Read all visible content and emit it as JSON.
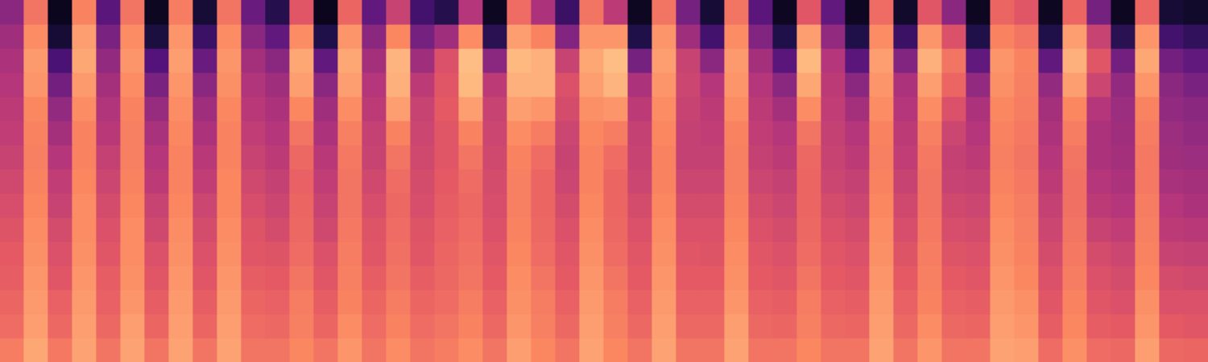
{
  "chart_data": {
    "type": "heatmap",
    "color": "magma",
    "color_range": [
      0,
      100
    ],
    "grid": false,
    "tick_labels": false,
    "cells": [
      [
        40,
        45,
        48,
        50,
        52,
        53,
        55,
        57,
        59,
        61,
        63,
        64,
        66,
        68,
        72
      ],
      [
        70,
        76,
        79,
        78,
        75,
        74,
        73,
        74,
        75,
        76,
        77,
        78,
        79,
        80,
        82
      ],
      [
        5,
        10,
        24,
        34,
        42,
        46,
        50,
        53,
        55,
        58,
        60,
        62,
        65,
        67,
        71
      ],
      [
        74,
        80,
        82,
        79,
        76,
        74,
        74,
        75,
        76,
        76,
        77,
        78,
        79,
        80,
        81
      ],
      [
        28,
        36,
        42,
        46,
        49,
        51,
        54,
        56,
        58,
        60,
        62,
        64,
        65,
        67,
        70
      ],
      [
        70,
        76,
        78,
        76,
        74,
        73,
        73,
        74,
        75,
        76,
        76,
        77,
        78,
        80,
        81
      ],
      [
        6,
        12,
        26,
        36,
        43,
        47,
        50,
        52,
        55,
        57,
        60,
        62,
        64,
        66,
        70
      ],
      [
        72,
        78,
        80,
        78,
        76,
        75,
        74,
        74,
        75,
        76,
        77,
        78,
        79,
        80,
        81
      ],
      [
        10,
        20,
        32,
        40,
        45,
        48,
        51,
        53,
        56,
        58,
        60,
        62,
        64,
        66,
        70
      ],
      [
        70,
        76,
        78,
        77,
        75,
        74,
        74,
        75,
        75,
        76,
        77,
        78,
        79,
        80,
        81
      ],
      [
        32,
        40,
        46,
        49,
        51,
        53,
        55,
        57,
        59,
        61,
        62,
        64,
        66,
        68,
        70
      ],
      [
        15,
        30,
        40,
        45,
        48,
        50,
        52,
        54,
        56,
        58,
        61,
        63,
        65,
        67,
        70
      ],
      [
        62,
        76,
        82,
        80,
        75,
        70,
        67,
        65,
        66,
        67,
        68,
        70,
        72,
        73,
        75
      ],
      [
        5,
        14,
        30,
        40,
        45,
        48,
        51,
        53,
        55,
        57,
        60,
        62,
        64,
        66,
        70
      ],
      [
        66,
        78,
        82,
        80,
        76,
        73,
        71,
        70,
        70,
        71,
        72,
        73,
        74,
        76,
        78
      ],
      [
        30,
        40,
        46,
        50,
        52,
        54,
        55,
        57,
        59,
        61,
        62,
        64,
        66,
        68,
        70
      ],
      [
        55,
        75,
        85,
        84,
        80,
        74,
        70,
        68,
        67,
        68,
        69,
        70,
        72,
        74,
        76
      ],
      [
        22,
        35,
        45,
        52,
        55,
        56,
        57,
        58,
        59,
        61,
        62,
        64,
        66,
        68,
        70
      ],
      [
        15,
        45,
        60,
        62,
        63,
        62,
        62,
        63,
        64,
        65,
        66,
        67,
        68,
        70,
        72
      ],
      [
        50,
        76,
        87,
        86,
        80,
        74,
        70,
        68,
        67,
        68,
        69,
        70,
        72,
        74,
        76
      ],
      [
        6,
        16,
        40,
        52,
        55,
        56,
        57,
        58,
        59,
        60,
        62,
        63,
        65,
        67,
        70
      ],
      [
        68,
        80,
        86,
        84,
        80,
        76,
        74,
        73,
        73,
        74,
        75,
        76,
        77,
        78,
        80
      ],
      [
        48,
        74,
        84,
        84,
        78,
        72,
        68,
        66,
        66,
        67,
        68,
        70,
        72,
        73,
        75
      ],
      [
        20,
        38,
        55,
        60,
        58,
        56,
        55,
        56,
        58,
        60,
        62,
        63,
        65,
        67,
        70
      ],
      [
        70,
        78,
        82,
        80,
        77,
        75,
        74,
        74,
        75,
        76,
        77,
        78,
        79,
        80,
        81
      ],
      [
        52,
        78,
        87,
        85,
        78,
        72,
        68,
        66,
        66,
        67,
        68,
        70,
        72,
        73,
        75
      ],
      [
        6,
        14,
        35,
        48,
        52,
        54,
        55,
        56,
        58,
        60,
        62,
        63,
        65,
        67,
        70
      ],
      [
        70,
        78,
        80,
        78,
        76,
        75,
        74,
        74,
        75,
        76,
        77,
        78,
        79,
        80,
        81
      ],
      [
        35,
        45,
        55,
        56,
        55,
        54,
        54,
        56,
        58,
        60,
        62,
        63,
        65,
        67,
        70
      ],
      [
        10,
        22,
        40,
        50,
        52,
        53,
        54,
        56,
        58,
        60,
        61,
        63,
        65,
        67,
        70
      ],
      [
        70,
        76,
        79,
        78,
        76,
        74,
        73,
        73,
        74,
        75,
        76,
        77,
        78,
        80,
        81
      ],
      [
        28,
        38,
        46,
        50,
        52,
        53,
        54,
        56,
        58,
        60,
        62,
        63,
        65,
        67,
        70
      ],
      [
        6,
        14,
        28,
        40,
        46,
        50,
        52,
        54,
        56,
        58,
        60,
        62,
        64,
        66,
        70
      ],
      [
        62,
        80,
        86,
        82,
        76,
        70,
        67,
        66,
        66,
        67,
        68,
        70,
        72,
        73,
        75
      ],
      [
        30,
        42,
        50,
        52,
        53,
        54,
        55,
        56,
        58,
        60,
        62,
        63,
        65,
        67,
        70
      ],
      [
        6,
        14,
        28,
        40,
        46,
        50,
        52,
        54,
        56,
        58,
        60,
        62,
        64,
        66,
        70
      ],
      [
        68,
        76,
        80,
        78,
        76,
        74,
        73,
        74,
        75,
        76,
        77,
        78,
        79,
        80,
        81
      ],
      [
        8,
        20,
        38,
        48,
        50,
        52,
        53,
        55,
        57,
        59,
        61,
        63,
        65,
        67,
        70
      ],
      [
        62,
        78,
        84,
        80,
        76,
        73,
        71,
        70,
        70,
        71,
        72,
        73,
        74,
        76,
        78
      ],
      [
        40,
        60,
        70,
        66,
        60,
        56,
        54,
        55,
        57,
        59,
        61,
        63,
        65,
        67,
        70
      ],
      [
        6,
        14,
        30,
        42,
        48,
        50,
        52,
        54,
        56,
        58,
        60,
        62,
        64,
        66,
        70
      ],
      [
        66,
        74,
        78,
        77,
        75,
        74,
        73,
        74,
        75,
        76,
        77,
        78,
        79,
        80,
        81
      ],
      [
        62,
        70,
        74,
        73,
        72,
        71,
        70,
        71,
        72,
        73,
        74,
        75,
        77,
        78,
        80
      ],
      [
        6,
        14,
        30,
        42,
        46,
        48,
        50,
        52,
        54,
        56,
        58,
        60,
        62,
        64,
        68
      ],
      [
        66,
        80,
        84,
        80,
        75,
        72,
        70,
        69,
        69,
        70,
        71,
        72,
        74,
        75,
        77
      ],
      [
        35,
        55,
        62,
        56,
        50,
        48,
        48,
        50,
        52,
        55,
        58,
        60,
        62,
        64,
        68
      ],
      [
        6,
        16,
        34,
        42,
        44,
        45,
        46,
        48,
        50,
        53,
        56,
        58,
        60,
        63,
        67
      ],
      [
        66,
        78,
        82,
        78,
        74,
        72,
        71,
        71,
        72,
        73,
        74,
        75,
        77,
        78,
        80
      ],
      [
        10,
        22,
        34,
        40,
        42,
        44,
        45,
        47,
        50,
        52,
        55,
        58,
        60,
        63,
        67
      ],
      [
        8,
        18,
        30,
        36,
        40,
        42,
        44,
        46,
        48,
        51,
        54,
        57,
        60,
        62,
        66
      ]
    ]
  }
}
